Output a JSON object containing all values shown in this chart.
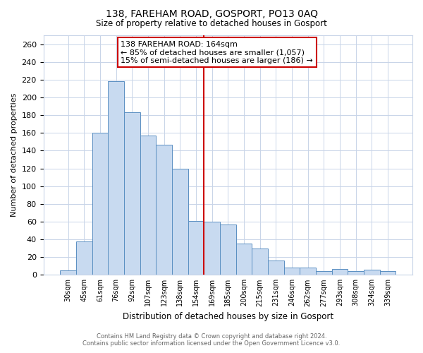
{
  "title": "138, FAREHAM ROAD, GOSPORT, PO13 0AQ",
  "subtitle": "Size of property relative to detached houses in Gosport",
  "xlabel": "Distribution of detached houses by size in Gosport",
  "ylabel": "Number of detached properties",
  "bar_labels": [
    "30sqm",
    "45sqm",
    "61sqm",
    "76sqm",
    "92sqm",
    "107sqm",
    "123sqm",
    "138sqm",
    "154sqm",
    "169sqm",
    "185sqm",
    "200sqm",
    "215sqm",
    "231sqm",
    "246sqm",
    "262sqm",
    "277sqm",
    "293sqm",
    "308sqm",
    "324sqm",
    "339sqm"
  ],
  "bar_values": [
    5,
    38,
    160,
    218,
    183,
    157,
    147,
    120,
    61,
    60,
    57,
    35,
    30,
    16,
    8,
    8,
    4,
    7,
    4,
    6,
    4
  ],
  "bar_color": "#c8daf0",
  "bar_edge_color": "#5a8fc2",
  "vline_index": 9,
  "vline_color": "#cc0000",
  "annotation_title": "138 FAREHAM ROAD: 164sqm",
  "annotation_line1": "← 85% of detached houses are smaller (1,057)",
  "annotation_line2": "15% of semi-detached houses are larger (186) →",
  "annotation_box_edge": "#cc0000",
  "ylim": [
    0,
    270
  ],
  "yticks": [
    0,
    20,
    40,
    60,
    80,
    100,
    120,
    140,
    160,
    180,
    200,
    220,
    240,
    260
  ],
  "footer_line1": "Contains HM Land Registry data © Crown copyright and database right 2024.",
  "footer_line2": "Contains public sector information licensed under the Open Government Licence v3.0.",
  "background_color": "#ffffff",
  "grid_color": "#c8d4e8"
}
